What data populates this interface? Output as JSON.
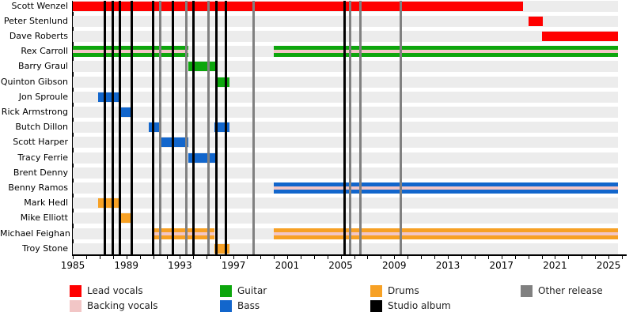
{
  "chart_data": {
    "type": "timeline",
    "x_axis": {
      "min": 1985,
      "max": 2026,
      "label_years": [
        1985,
        1989,
        1993,
        1997,
        2001,
        2005,
        2009,
        2013,
        2017,
        2021,
        2025
      ],
      "minor_tick_step": 1
    },
    "members": [
      {
        "name": "Scott Wenzel",
        "role": "lead_vocals",
        "segments": [
          {
            "from": 1985.0,
            "to": 2018.6
          }
        ]
      },
      {
        "name": "Peter Stenlund",
        "role": "lead_vocals",
        "segments": [
          {
            "from": 2019.0,
            "to": 2020.1
          }
        ]
      },
      {
        "name": "Dave Roberts",
        "role": "lead_vocals",
        "segments": [
          {
            "from": 2020.0,
            "to": 2025.7
          }
        ]
      },
      {
        "name": "Rex Carroll",
        "role": "guitar",
        "stripe": "backing_vocals",
        "segments": [
          {
            "from": 1985.0,
            "to": 1993.65
          },
          {
            "from": 2000.0,
            "to": 2025.7
          }
        ]
      },
      {
        "name": "Barry Graul",
        "role": "guitar",
        "segments": [
          {
            "from": 1993.65,
            "to": 1995.7
          }
        ]
      },
      {
        "name": "Quinton Gibson",
        "role": "guitar",
        "segments": [
          {
            "from": 1995.7,
            "to": 1996.7
          }
        ]
      },
      {
        "name": "Jon Sproule",
        "role": "bass",
        "segments": [
          {
            "from": 1986.9,
            "to": 1988.4
          }
        ]
      },
      {
        "name": "Rick Armstrong",
        "role": "bass",
        "segments": [
          {
            "from": 1988.4,
            "to": 1989.4
          }
        ]
      },
      {
        "name": "Butch Dillon",
        "role": "bass",
        "segments": [
          {
            "from": 1990.7,
            "to": 1991.5
          },
          {
            "from": 1995.6,
            "to": 1996.7
          }
        ]
      },
      {
        "name": "Scott Harper",
        "role": "bass",
        "segments": [
          {
            "from": 1991.5,
            "to": 1993.6
          }
        ]
      },
      {
        "name": "Tracy Ferrie",
        "role": "bass",
        "segments": [
          {
            "from": 1993.6,
            "to": 1995.7
          }
        ]
      },
      {
        "name": "Brent Denny",
        "role": "bass",
        "segments": []
      },
      {
        "name": "Benny Ramos",
        "role": "bass",
        "stripe": "backing_vocals",
        "segments": [
          {
            "from": 2000.0,
            "to": 2025.7
          }
        ]
      },
      {
        "name": "Mark Hedl",
        "role": "drums",
        "segments": [
          {
            "from": 1986.9,
            "to": 1988.4
          }
        ]
      },
      {
        "name": "Mike Elliott",
        "role": "drums",
        "segments": [
          {
            "from": 1988.5,
            "to": 1989.5
          }
        ]
      },
      {
        "name": "Michael Feighan",
        "role": "drums",
        "stripe": "backing_vocals",
        "segments": [
          {
            "from": 1991.0,
            "to": 1995.6
          },
          {
            "from": 2000.0,
            "to": 2025.7
          }
        ]
      },
      {
        "name": "Troy Stone",
        "role": "drums",
        "segments": [
          {
            "from": 1995.6,
            "to": 1996.7
          }
        ]
      }
    ],
    "releases": {
      "studio_albums": [
        1987.4,
        1988.0,
        1988.5,
        1989.4,
        1991.0,
        1992.45,
        1994.0,
        1995.75,
        1996.45,
        2005.3
      ],
      "other_releases": [
        1991.5,
        1993.5,
        1995.15,
        1998.5,
        2005.7,
        2006.45,
        2009.5
      ]
    }
  },
  "colors": {
    "lead_vocals": "#ff0000",
    "backing_vocals": "#f2c6c6",
    "guitar": "#0da60d",
    "bass": "#1266cc",
    "drums": "#f7a125",
    "studio_album": "#000000",
    "other_release": "#808080",
    "row_stripe": "#ececec"
  },
  "legend": {
    "columns": [
      {
        "items": [
          {
            "label": "Lead vocals",
            "role": "lead_vocals"
          },
          {
            "label": "Backing vocals",
            "role": "backing_vocals"
          }
        ]
      },
      {
        "items": [
          {
            "label": "Guitar",
            "role": "guitar"
          },
          {
            "label": "Bass",
            "role": "bass"
          }
        ]
      },
      {
        "items": [
          {
            "label": "Drums",
            "role": "drums"
          },
          {
            "label": "Studio album",
            "role": "studio_album"
          }
        ]
      },
      {
        "items": [
          {
            "label": "Other release",
            "role": "other_release"
          }
        ]
      }
    ]
  }
}
